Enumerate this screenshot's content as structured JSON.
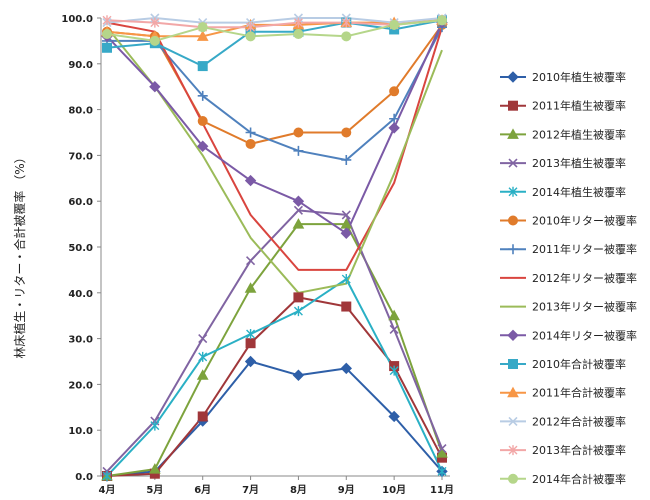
{
  "chart_data": {
    "type": "line",
    "title": "",
    "xlabel": "",
    "ylabel": "林床植生・リター・合計被覆率 （%）",
    "ylim": [
      0,
      100
    ],
    "yticks": [
      "0.0",
      "10.0",
      "20.0",
      "30.0",
      "40.0",
      "50.0",
      "60.0",
      "70.0",
      "80.0",
      "90.0",
      "100.0"
    ],
    "categories": [
      "4月",
      "5月",
      "6月",
      "7月",
      "8月",
      "9月",
      "10月",
      "11月"
    ],
    "grid": false,
    "legend_position": "right",
    "series": [
      {
        "name": "2010年植生被覆率",
        "color": "#2e5fa8",
        "marker": "diamond",
        "values": [
          0,
          1,
          12,
          25,
          22,
          23.5,
          13,
          1
        ]
      },
      {
        "name": "2011年植生被覆率",
        "color": "#a0373a",
        "marker": "square",
        "values": [
          0,
          0.5,
          13,
          29,
          39,
          37,
          24,
          4
        ]
      },
      {
        "name": "2012年植生被覆率",
        "color": "#7da33d",
        "marker": "triangle",
        "values": [
          0,
          1.5,
          22,
          41,
          55,
          55,
          35,
          5
        ]
      },
      {
        "name": "2013年植生被覆率",
        "color": "#8064a2",
        "marker": "x",
        "values": [
          1,
          12,
          30,
          47,
          58,
          57,
          32,
          6
        ]
      },
      {
        "name": "2014年植生被覆率",
        "color": "#2ab0c5",
        "marker": "asterisk",
        "values": [
          0,
          11,
          26,
          31,
          36,
          43,
          23,
          1
        ]
      },
      {
        "name": "2010年リター被覆率",
        "color": "#e07b2b",
        "marker": "circle",
        "values": [
          97,
          96,
          77.5,
          72.5,
          75,
          75,
          84,
          98.5
        ]
      },
      {
        "name": "2011年リター被覆率",
        "color": "#4f81bd",
        "marker": "plus",
        "values": [
          95,
          95,
          83,
          75,
          71,
          69,
          78,
          98
        ]
      },
      {
        "name": "2012年リター被覆率",
        "color": "#d9453f",
        "marker": "none",
        "values": [
          99,
          97,
          77,
          57,
          45,
          45,
          64,
          98
        ]
      },
      {
        "name": "2013年リター被覆率",
        "color": "#9bbb59",
        "marker": "none",
        "values": [
          98,
          85,
          70,
          52,
          40,
          42,
          66,
          93
        ]
      },
      {
        "name": "2014年リター被覆率",
        "color": "#7b5aa6",
        "marker": "diamond",
        "values": [
          96,
          85,
          72,
          64.5,
          60,
          53,
          76,
          99
        ]
      },
      {
        "name": "2010年合計被覆率",
        "color": "#37a9c7",
        "marker": "square",
        "values": [
          93.5,
          94.5,
          89.5,
          97,
          97,
          99,
          97.5,
          99.5
        ]
      },
      {
        "name": "2011年合計被覆率",
        "color": "#f79646",
        "marker": "triangle",
        "values": [
          97,
          96,
          96,
          98.5,
          98.5,
          99,
          99,
          99.5
        ]
      },
      {
        "name": "2012年合計被覆率",
        "color": "#b8cce4",
        "marker": "x",
        "values": [
          99,
          100,
          99,
          99,
          100,
          100,
          99,
          100
        ]
      },
      {
        "name": "2013年合計被覆率",
        "color": "#f2a7a7",
        "marker": "asterisk",
        "values": [
          99.5,
          99,
          98,
          98,
          99,
          99,
          98.5,
          99.5
        ]
      },
      {
        "name": "2014年合計被覆率",
        "color": "#b5d68a",
        "marker": "circle",
        "values": [
          96.5,
          95,
          98,
          96,
          96.5,
          96,
          98.5,
          99.5
        ]
      }
    ]
  }
}
